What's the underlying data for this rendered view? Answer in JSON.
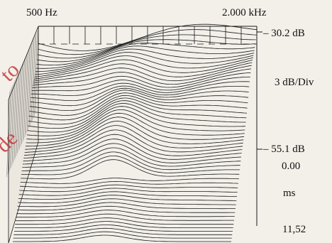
{
  "chart_data": {
    "type": "waterfall",
    "x_range": [
      "500 Hz",
      "2.000 kHz"
    ],
    "x_label_left": "500 Hz",
    "x_label_right": "2.000 kHz",
    "db_top": "– 30.2 dB",
    "db_scale": "3 dB/Div",
    "db_bottom": "– 55.1 dB",
    "time_start": "0.00",
    "time_unit": "ms",
    "time_end": "11,52",
    "ylim": [
      -55.1,
      -30.2
    ],
    "grid": true,
    "colors": {
      "line": "#1a1a1a",
      "background": "#f3f0ea",
      "watermark": "#c43a3a"
    }
  },
  "watermark": {
    "line1": "to",
    "line2": "de"
  }
}
